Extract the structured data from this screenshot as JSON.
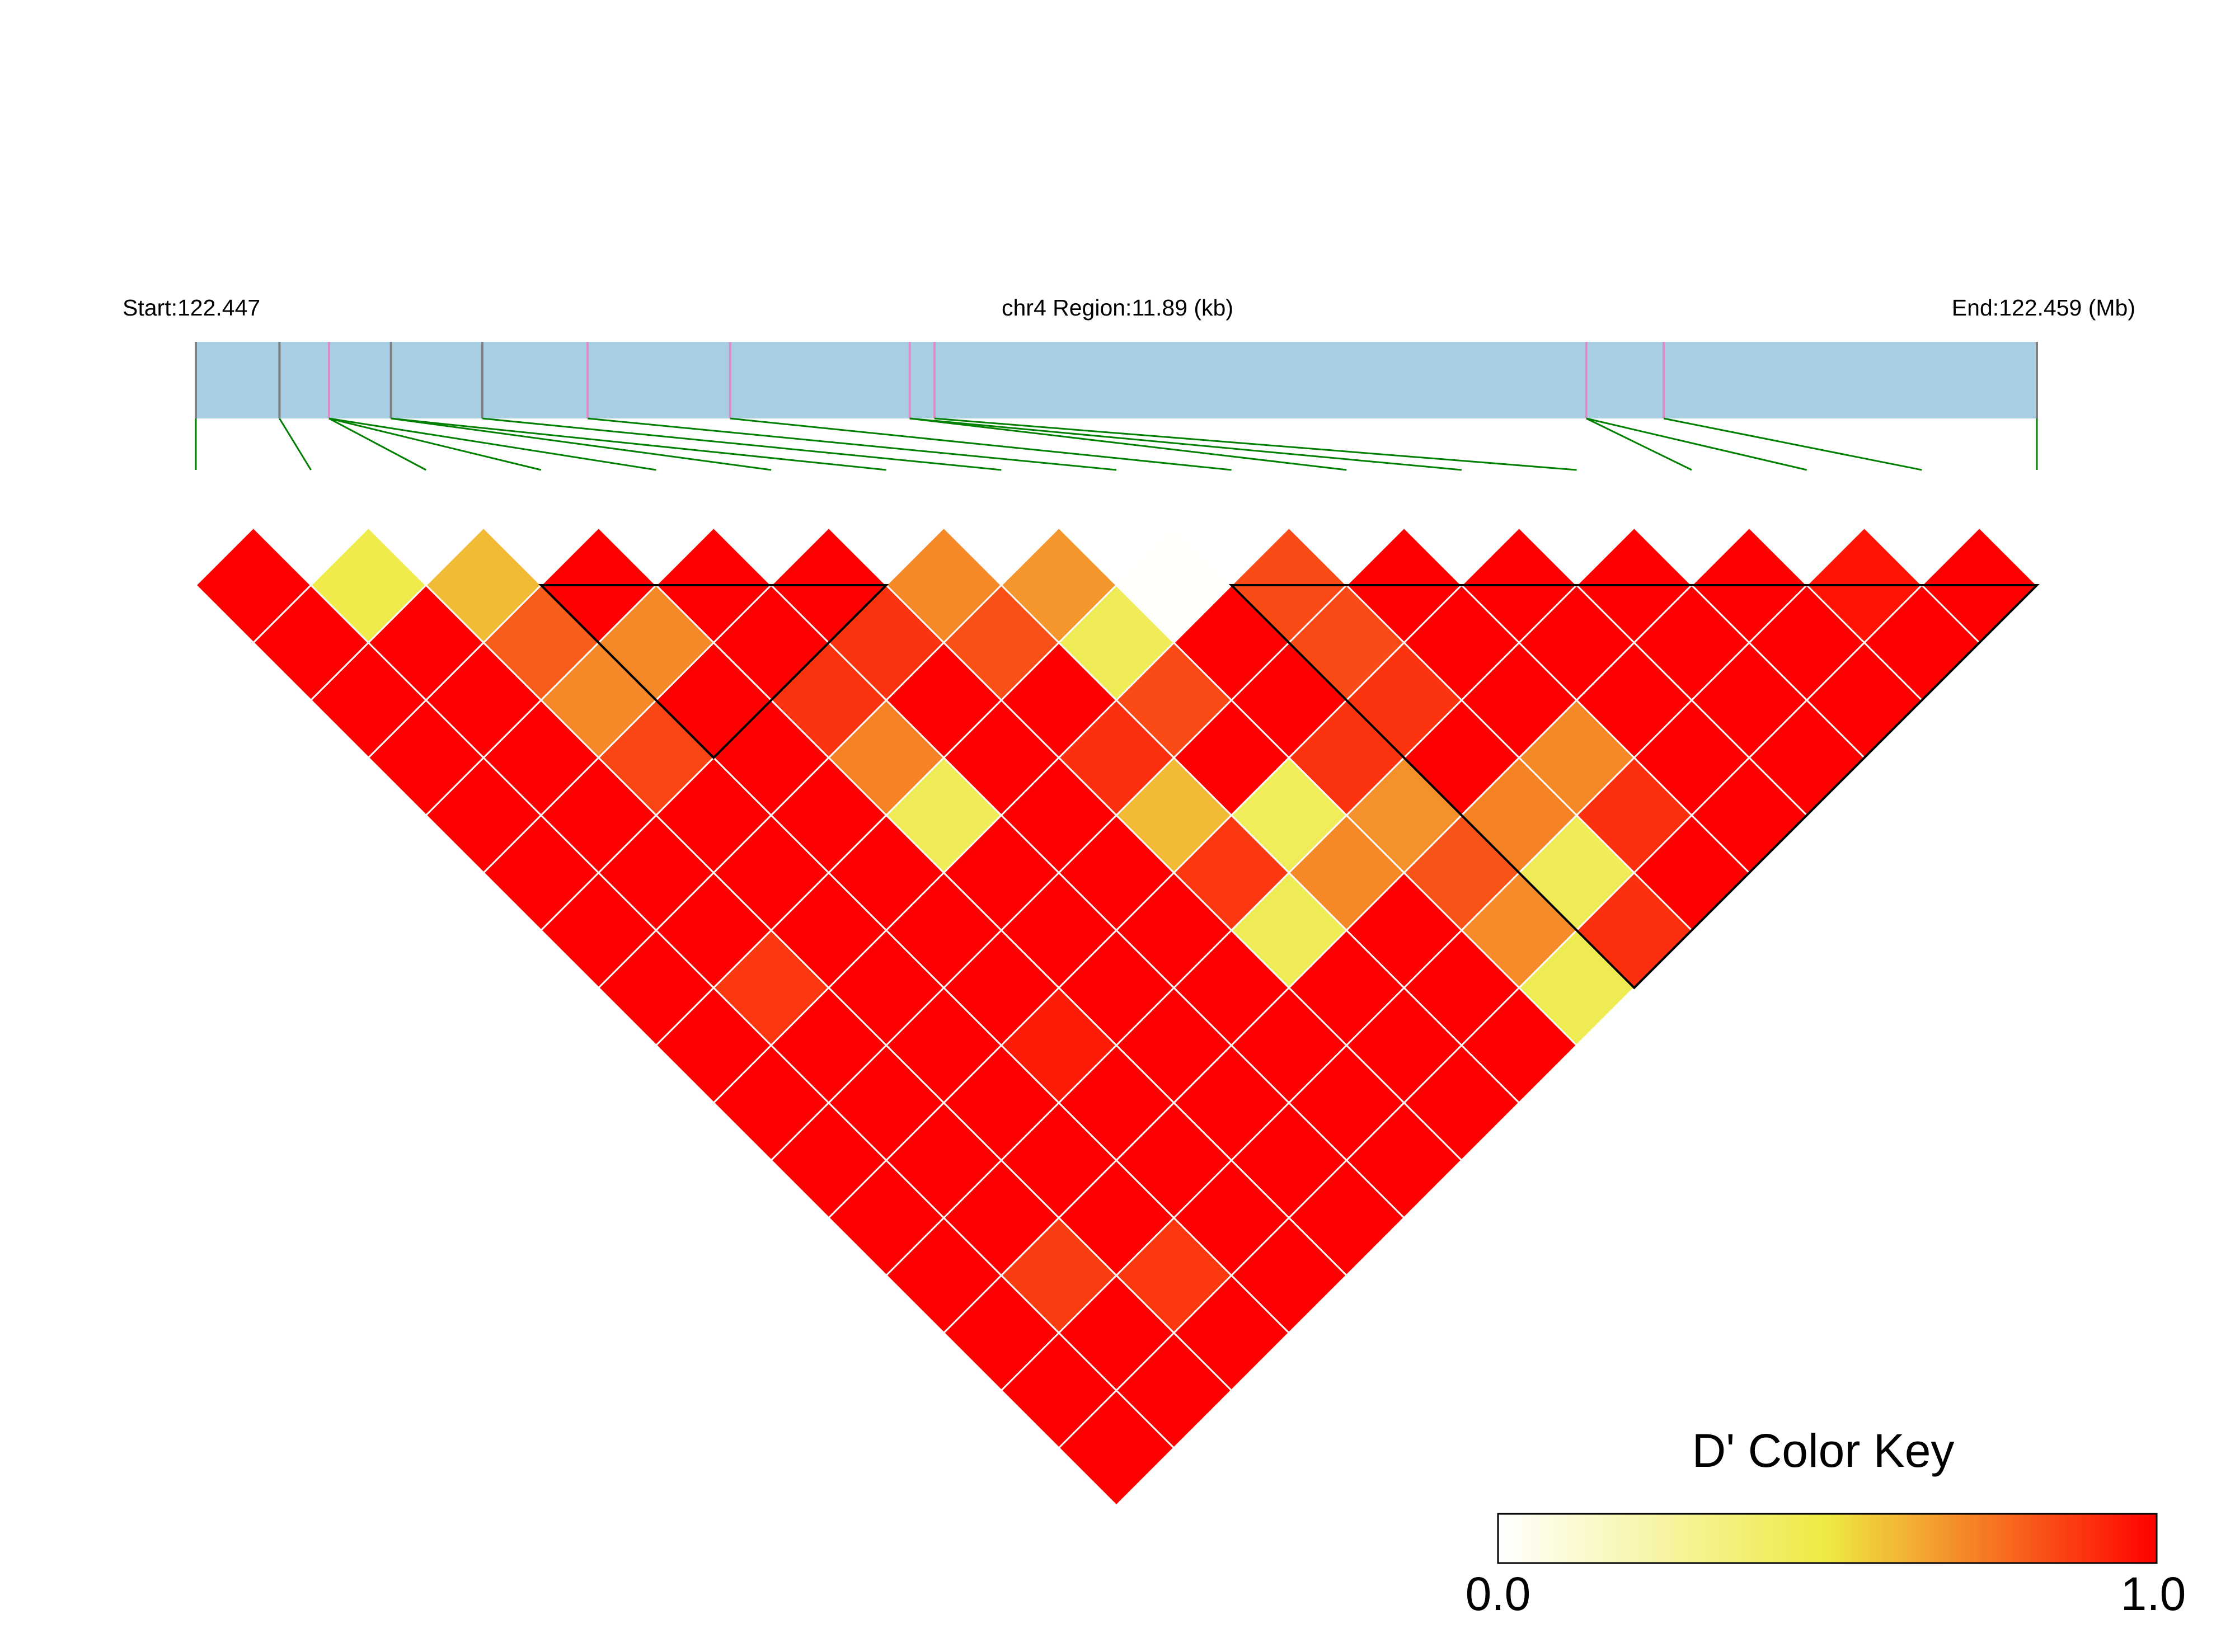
{
  "chart_data": {
    "type": "heatmap",
    "subtype": "ld-triangle",
    "header": {
      "start_label": "Start:122.447",
      "region_label": "chr4 Region:11.89 (kb)",
      "end_label": "End:122.459 (Mb)"
    },
    "region": {
      "chromosome": "chr4",
      "start_mb": 122.447,
      "end_mb": 122.459,
      "length_kb": 11.89
    },
    "snp_count": 17,
    "snp_positions_kb": [
      0.0,
      0.54,
      0.86,
      1.26,
      1.85,
      2.53,
      3.45,
      4.61,
      4.77,
      8.98,
      9.48,
      11.89
    ],
    "snp_marks_grey": [
      0,
      1,
      3,
      4
    ],
    "snp_marks_pink": [
      2,
      5,
      6,
      7,
      8,
      9,
      10
    ],
    "snp_index_to_position": [
      0,
      1,
      2,
      2,
      2,
      3,
      3,
      4,
      5,
      6,
      7,
      7,
      8,
      9,
      9,
      10,
      11
    ],
    "color_key": {
      "title": "D' Color Key",
      "min_label": "0.0",
      "max_label": "1.0",
      "stops": [
        {
          "value": 0.0,
          "color": "#ffffff"
        },
        {
          "value": 0.5,
          "color": "#eeea44"
        },
        {
          "value": 1.0,
          "color": "#ff0000"
        }
      ]
    },
    "colors": {
      "region_bar": "#a8cee2",
      "snp_line_grey": "#808080",
      "snp_line_pink": "#de8cc8",
      "connector": "#008000",
      "block_outline": "#000000",
      "cell_border": "#ffffff"
    },
    "dprime_matrix": [
      [
        null,
        1.0,
        1.0,
        1.0,
        1.0,
        1.0,
        1.0,
        1.0,
        1.0,
        1.0,
        1.0,
        1.0,
        1.0,
        1.0,
        1.0,
        1.0,
        1.0
      ],
      [
        1.0,
        null,
        0.48,
        1.0,
        1.0,
        1.0,
        1.0,
        1.0,
        1.0,
        0.88,
        1.0,
        1.0,
        1.0,
        1.0,
        0.87,
        1.0,
        1.0
      ],
      [
        1.0,
        0.48,
        null,
        0.6,
        0.8,
        0.71,
        0.85,
        1.0,
        1.0,
        1.0,
        1.0,
        1.0,
        1.0,
        1.0,
        1.0,
        0.88,
        1.0
      ],
      [
        1.0,
        1.0,
        0.6,
        null,
        1.0,
        0.71,
        1.0,
        1.0,
        1.0,
        1.0,
        1.0,
        1.0,
        0.94,
        1.0,
        1.0,
        1.0,
        1.0
      ],
      [
        1.0,
        1.0,
        0.8,
        1.0,
        null,
        1.0,
        1.0,
        0.89,
        0.72,
        0.45,
        1.0,
        1.0,
        1.0,
        1.0,
        1.0,
        1.0,
        1.0
      ],
      [
        1.0,
        1.0,
        0.71,
        0.71,
        1.0,
        null,
        1.0,
        0.89,
        1.0,
        1.0,
        1.0,
        1.0,
        1.0,
        1.0,
        1.0,
        1.0,
        1.0
      ],
      [
        1.0,
        1.0,
        0.85,
        1.0,
        1.0,
        1.0,
        null,
        0.71,
        0.83,
        1.0,
        0.9,
        0.6,
        0.88,
        0.45,
        1.0,
        1.0,
        1.0
      ],
      [
        1.0,
        1.0,
        1.0,
        1.0,
        0.89,
        0.89,
        0.71,
        null,
        0.68,
        0.45,
        0.84,
        1.0,
        0.44,
        0.71,
        1.0,
        1.0,
        1.0
      ],
      [
        1.0,
        1.0,
        1.0,
        1.0,
        0.72,
        1.0,
        0.83,
        0.68,
        null,
        0.01,
        1.0,
        1.0,
        0.89,
        0.69,
        0.82,
        0.7,
        0.46
      ],
      [
        1.0,
        0.88,
        1.0,
        1.0,
        0.45,
        1.0,
        1.0,
        0.45,
        0.01,
        null,
        0.84,
        0.84,
        0.89,
        1.0,
        0.72,
        0.45,
        0.9
      ],
      [
        1.0,
        1.0,
        1.0,
        1.0,
        1.0,
        1.0,
        0.9,
        0.84,
        1.0,
        0.84,
        null,
        1.0,
        1.0,
        1.0,
        0.71,
        0.9,
        1.0
      ],
      [
        1.0,
        1.0,
        1.0,
        1.0,
        1.0,
        1.0,
        0.6,
        1.0,
        1.0,
        0.84,
        1.0,
        null,
        1.0,
        1.0,
        1.0,
        1.0,
        1.0
      ],
      [
        1.0,
        1.0,
        1.0,
        0.94,
        1.0,
        1.0,
        0.88,
        0.44,
        0.89,
        0.89,
        1.0,
        1.0,
        null,
        1.0,
        1.0,
        1.0,
        1.0
      ],
      [
        1.0,
        1.0,
        1.0,
        1.0,
        1.0,
        1.0,
        0.45,
        0.71,
        0.69,
        1.0,
        1.0,
        1.0,
        1.0,
        null,
        1.0,
        1.0,
        1.0
      ],
      [
        1.0,
        0.87,
        1.0,
        1.0,
        1.0,
        1.0,
        1.0,
        1.0,
        0.82,
        0.72,
        0.71,
        1.0,
        1.0,
        1.0,
        null,
        0.96,
        1.0
      ],
      [
        1.0,
        1.0,
        0.88,
        1.0,
        1.0,
        1.0,
        1.0,
        1.0,
        0.7,
        0.45,
        0.9,
        1.0,
        1.0,
        1.0,
        0.96,
        null,
        1.0
      ],
      [
        1.0,
        1.0,
        1.0,
        1.0,
        1.0,
        1.0,
        1.0,
        1.0,
        0.46,
        0.9,
        1.0,
        1.0,
        1.0,
        1.0,
        1.0,
        1.0,
        null
      ]
    ],
    "haplotype_blocks": [
      {
        "first_snp": 3,
        "last_snp": 6
      },
      {
        "first_snp": 9,
        "last_snp": 16
      }
    ]
  }
}
